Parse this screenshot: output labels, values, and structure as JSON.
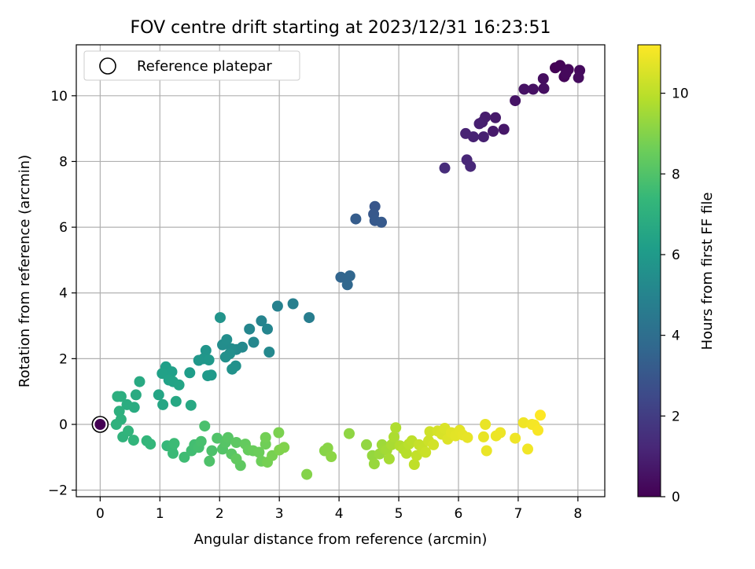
{
  "chart_data": {
    "type": "scatter",
    "title": "FOV centre drift starting at 2023/12/31 16:23:51",
    "xlabel": "Angular distance from reference (arcmin)",
    "ylabel": "Rotation from reference (arcmin)",
    "xlim": [
      -0.4,
      8.45
    ],
    "ylim": [
      -2.2,
      11.55
    ],
    "xticks": [
      0,
      1,
      2,
      3,
      4,
      5,
      6,
      7,
      8
    ],
    "yticks": [
      -2,
      0,
      2,
      4,
      6,
      8,
      10
    ],
    "grid": true,
    "legend": {
      "position": "top-left",
      "entries": [
        "Reference platepar"
      ]
    },
    "reference_point": {
      "x": 0,
      "y": 0
    },
    "colorbar": {
      "label": "Hours from first FF file",
      "colormap": "viridis",
      "range": [
        0,
        11.2
      ],
      "ticks": [
        0,
        2,
        4,
        6,
        8,
        10
      ]
    },
    "points": [
      [
        7.62,
        10.85,
        0.05
      ],
      [
        7.7,
        10.92,
        0.1
      ],
      [
        7.77,
        10.58,
        0.15
      ],
      [
        7.84,
        10.8,
        0.2
      ],
      [
        7.8,
        10.68,
        0.25
      ],
      [
        8.03,
        10.77,
        0.3
      ],
      [
        8.01,
        10.55,
        0.35
      ],
      [
        7.42,
        10.52,
        0.4
      ],
      [
        7.43,
        10.22,
        0.45
      ],
      [
        7.25,
        10.2,
        0.5
      ],
      [
        7.1,
        10.2,
        0.55
      ],
      [
        6.95,
        9.85,
        0.6
      ],
      [
        6.76,
        8.98,
        0.7
      ],
      [
        6.62,
        9.33,
        0.75
      ],
      [
        6.58,
        8.92,
        0.8
      ],
      [
        6.45,
        9.35,
        0.85
      ],
      [
        6.4,
        9.2,
        0.9
      ],
      [
        6.35,
        9.15,
        0.95
      ],
      [
        6.42,
        8.75,
        1.0
      ],
      [
        6.25,
        8.75,
        1.05
      ],
      [
        6.12,
        8.85,
        1.1
      ],
      [
        6.14,
        8.05,
        1.2
      ],
      [
        6.2,
        7.85,
        1.25
      ],
      [
        5.77,
        7.8,
        1.4
      ],
      [
        4.6,
        6.63,
        3.0
      ],
      [
        4.58,
        6.4,
        3.05
      ],
      [
        4.6,
        6.2,
        3.1
      ],
      [
        4.71,
        6.15,
        3.15
      ],
      [
        4.28,
        6.25,
        3.25
      ],
      [
        4.03,
        4.48,
        3.6
      ],
      [
        4.18,
        4.52,
        3.65
      ],
      [
        4.14,
        4.25,
        3.7
      ],
      [
        3.5,
        3.25,
        4.7
      ],
      [
        3.23,
        3.67,
        4.8
      ],
      [
        2.97,
        3.6,
        4.9
      ],
      [
        2.7,
        3.15,
        5.0
      ],
      [
        2.8,
        2.9,
        5.05
      ],
      [
        2.5,
        2.9,
        5.1
      ],
      [
        2.57,
        2.5,
        5.15
      ],
      [
        2.83,
        2.2,
        5.2
      ],
      [
        2.38,
        2.35,
        5.25
      ],
      [
        2.28,
        2.28,
        5.3
      ],
      [
        2.2,
        2.3,
        5.35
      ],
      [
        2.05,
        2.42,
        5.4
      ],
      [
        2.12,
        2.58,
        5.45
      ],
      [
        2.17,
        2.15,
        5.5
      ],
      [
        2.1,
        2.05,
        5.55
      ],
      [
        2.27,
        1.78,
        5.6
      ],
      [
        2.21,
        1.68,
        5.65
      ],
      [
        2.01,
        3.25,
        5.7
      ],
      [
        1.77,
        2.25,
        5.75
      ],
      [
        1.73,
        2.0,
        5.8
      ],
      [
        1.65,
        1.95,
        5.85
      ],
      [
        1.82,
        1.96,
        5.9
      ],
      [
        1.86,
        1.5,
        5.95
      ],
      [
        1.8,
        1.48,
        6.0
      ],
      [
        1.5,
        1.57,
        6.1
      ],
      [
        1.1,
        1.75,
        6.2
      ],
      [
        1.2,
        1.6,
        6.25
      ],
      [
        1.04,
        1.55,
        6.3
      ],
      [
        1.15,
        1.35,
        6.35
      ],
      [
        1.22,
        1.3,
        6.4
      ],
      [
        1.32,
        1.2,
        6.45
      ],
      [
        0.98,
        0.9,
        6.5
      ],
      [
        1.05,
        0.6,
        6.55
      ],
      [
        1.27,
        0.7,
        6.6
      ],
      [
        1.52,
        0.58,
        6.65
      ],
      [
        0.66,
        1.3,
        6.7
      ],
      [
        0.6,
        0.9,
        6.75
      ],
      [
        0.57,
        0.52,
        6.8
      ],
      [
        0.45,
        0.6,
        6.85
      ],
      [
        0.35,
        0.85,
        6.9
      ],
      [
        0.29,
        0.85,
        6.95
      ],
      [
        0.32,
        0.4,
        7.0
      ],
      [
        0.35,
        0.15,
        7.05
      ],
      [
        0.27,
        0.0,
        7.1
      ],
      [
        0.38,
        -0.38,
        7.15
      ],
      [
        0.47,
        -0.2,
        7.2
      ],
      [
        0.56,
        -0.48,
        7.25
      ],
      [
        0.78,
        -0.5,
        7.3
      ],
      [
        0.84,
        -0.6,
        7.35
      ],
      [
        1.12,
        -0.65,
        7.4
      ],
      [
        1.2,
        -0.7,
        7.45
      ],
      [
        1.22,
        -0.88,
        7.5
      ],
      [
        1.24,
        -0.58,
        7.55
      ],
      [
        1.41,
        -1.0,
        7.6
      ],
      [
        1.53,
        -0.8,
        7.65
      ],
      [
        1.58,
        -0.62,
        7.7
      ],
      [
        1.65,
        -0.7,
        7.75
      ],
      [
        1.69,
        -0.52,
        7.8
      ],
      [
        1.75,
        -0.05,
        7.85
      ],
      [
        1.87,
        -0.8,
        7.9
      ],
      [
        1.83,
        -1.12,
        7.95
      ],
      [
        1.96,
        -0.42,
        8.0
      ],
      [
        2.05,
        -0.75,
        8.05
      ],
      [
        2.1,
        -0.55,
        8.1
      ],
      [
        2.14,
        -0.4,
        8.15
      ],
      [
        2.2,
        -0.9,
        8.2
      ],
      [
        2.28,
        -0.55,
        8.25
      ],
      [
        2.35,
        -1.25,
        8.3
      ],
      [
        2.28,
        -1.05,
        8.35
      ],
      [
        2.43,
        -0.6,
        8.4
      ],
      [
        2.48,
        -0.78,
        8.45
      ],
      [
        2.56,
        -0.8,
        8.5
      ],
      [
        2.66,
        -0.85,
        8.55
      ],
      [
        2.7,
        -1.12,
        8.6
      ],
      [
        2.77,
        -0.6,
        8.65
      ],
      [
        2.77,
        -0.4,
        8.7
      ],
      [
        2.8,
        -1.15,
        8.75
      ],
      [
        2.88,
        -0.95,
        8.8
      ],
      [
        2.99,
        -0.25,
        8.85
      ],
      [
        3.0,
        -0.78,
        8.9
      ],
      [
        3.08,
        -0.7,
        8.95
      ],
      [
        3.46,
        -1.52,
        9.0
      ],
      [
        3.76,
        -0.8,
        9.05
      ],
      [
        3.81,
        -0.72,
        9.1
      ],
      [
        3.87,
        -0.98,
        9.15
      ],
      [
        4.17,
        -0.28,
        9.2
      ],
      [
        4.46,
        -0.62,
        9.25
      ],
      [
        4.56,
        -0.95,
        9.3
      ],
      [
        4.59,
        -1.2,
        9.35
      ],
      [
        4.68,
        -0.9,
        9.4
      ],
      [
        4.72,
        -0.62,
        9.45
      ],
      [
        4.76,
        -0.75,
        9.5
      ],
      [
        4.8,
        -0.78,
        9.55
      ],
      [
        4.84,
        -1.05,
        9.6
      ],
      [
        4.88,
        -0.62,
        9.65
      ],
      [
        4.92,
        -0.38,
        9.7
      ],
      [
        4.95,
        -0.1,
        9.75
      ],
      [
        5.02,
        -0.65,
        9.8
      ],
      [
        5.08,
        -0.75,
        9.85
      ],
      [
        5.13,
        -0.88,
        9.9
      ],
      [
        5.17,
        -0.6,
        9.95
      ],
      [
        5.22,
        -0.5,
        10.0
      ],
      [
        5.26,
        -1.22,
        10.05
      ],
      [
        5.3,
        -0.95,
        10.1
      ],
      [
        5.34,
        -0.62,
        10.15
      ],
      [
        5.4,
        -0.75,
        10.2
      ],
      [
        5.45,
        -0.85,
        10.25
      ],
      [
        5.5,
        -0.5,
        10.3
      ],
      [
        5.52,
        -0.22,
        10.35
      ],
      [
        5.58,
        -0.62,
        10.4
      ],
      [
        5.65,
        -0.2,
        10.45
      ],
      [
        5.72,
        -0.3,
        10.5
      ],
      [
        5.77,
        -0.12,
        10.55
      ],
      [
        5.82,
        -0.45,
        10.6
      ],
      [
        5.88,
        -0.25,
        10.65
      ],
      [
        5.95,
        -0.35,
        10.7
      ],
      [
        6.02,
        -0.18,
        10.72
      ],
      [
        6.07,
        -0.32,
        10.75
      ],
      [
        6.15,
        -0.4,
        10.78
      ],
      [
        6.42,
        -0.38,
        10.8
      ],
      [
        6.45,
        0.0,
        10.82
      ],
      [
        6.47,
        -0.8,
        10.85
      ],
      [
        6.63,
        -0.35,
        10.88
      ],
      [
        6.7,
        -0.25,
        10.9
      ],
      [
        6.95,
        -0.42,
        10.93
      ],
      [
        7.09,
        0.05,
        10.96
      ],
      [
        7.16,
        -0.75,
        10.98
      ],
      [
        7.23,
        0.0,
        11.0
      ],
      [
        7.27,
        -0.02,
        11.05
      ],
      [
        7.33,
        -0.18,
        11.1
      ],
      [
        7.37,
        0.28,
        11.2
      ]
    ]
  }
}
